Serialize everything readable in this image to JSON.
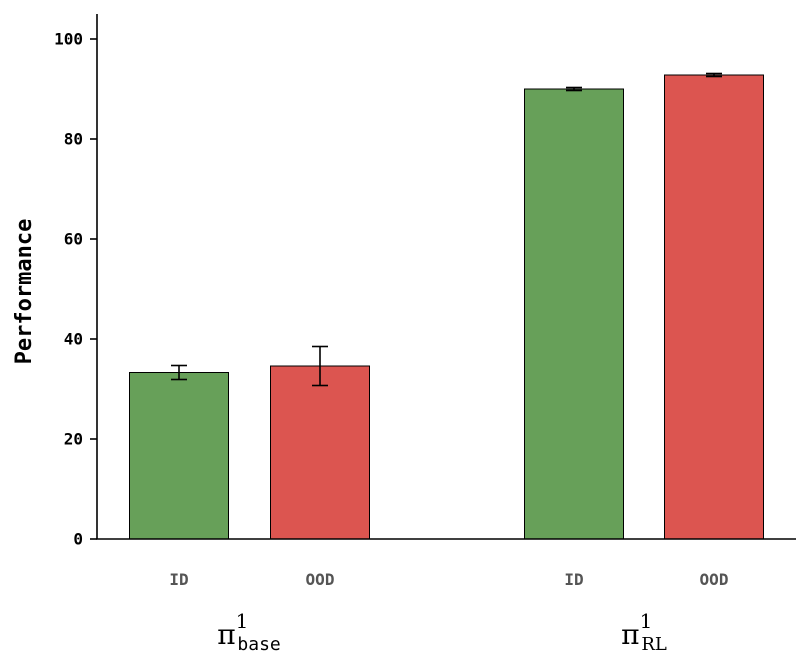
{
  "chart_data": {
    "type": "bar",
    "ylabel": "Performance",
    "ylim": [
      0,
      105
    ],
    "yticks": [
      0,
      20,
      40,
      60,
      80,
      100
    ],
    "grid": false,
    "legend": "none",
    "groups": [
      {
        "label": {
          "symbol": "π",
          "sup": "1",
          "sub": "base"
        },
        "categories": [
          "ID",
          "OOD"
        ],
        "values": [
          33.3,
          34.6
        ],
        "errors": [
          1.4,
          3.9
        ],
        "colors": [
          "#67a059",
          "#dc5550"
        ]
      },
      {
        "label": {
          "symbol": "π",
          "sup": "1",
          "sub": "RL"
        },
        "categories": [
          "ID",
          "OOD"
        ],
        "values": [
          90.0,
          92.8
        ],
        "errors": [
          0.3,
          0.3
        ],
        "colors": [
          "#67a059",
          "#dc5550"
        ]
      }
    ]
  }
}
